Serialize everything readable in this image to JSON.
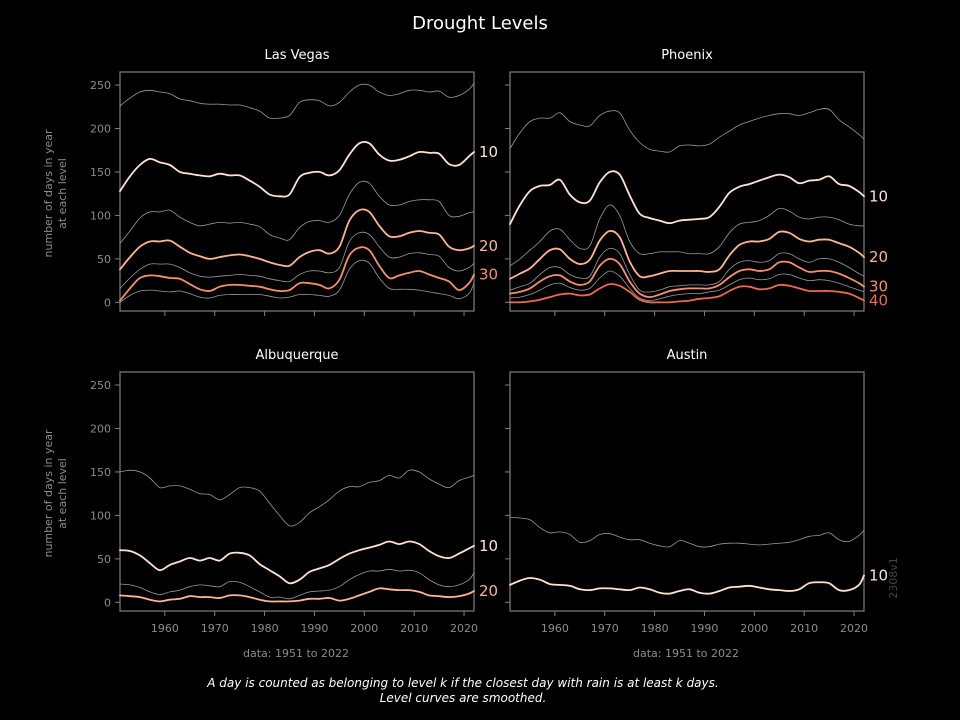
{
  "title": "Drought Levels",
  "caption_line1": "A day is counted as belonging to level k if the closest day with rain is at least k days.",
  "caption_line2": "Level curves are smoothed.",
  "version_tag": "2308v1",
  "ylabel_line1": "number of days in year",
  "ylabel_line2": "at each level",
  "xlabel": "data: 1951 to 2022",
  "colors": {
    "background": "#000000",
    "frame": "#808080",
    "grey_curve": "#9a9a9a",
    "level10": "#ffe3cf",
    "level20": "#ffb591",
    "level30": "#f88f6d",
    "level40": "#ee6a4c"
  },
  "chart_data": [
    {
      "type": "line",
      "title": "Las Vegas",
      "xlim": [
        1951,
        2022
      ],
      "ylim": [
        -10,
        265
      ],
      "xticks": [
        1960,
        1970,
        1980,
        1990,
        2000,
        2010,
        2020
      ],
      "yticks": [
        0,
        50,
        100,
        150,
        200,
        250
      ],
      "x": [
        1951,
        1953,
        1955,
        1957,
        1959,
        1961,
        1963,
        1965,
        1967,
        1969,
        1971,
        1973,
        1975,
        1977,
        1979,
        1981,
        1983,
        1985,
        1987,
        1989,
        1991,
        1993,
        1995,
        1997,
        1999,
        2001,
        2003,
        2005,
        2007,
        2009,
        2011,
        2013,
        2015,
        2017,
        2019,
        2021,
        2022
      ],
      "series": [
        {
          "level": 5,
          "end_label": "",
          "values": [
            226,
            235,
            242,
            244,
            242,
            240,
            234,
            232,
            229,
            228,
            228,
            227,
            227,
            224,
            220,
            212,
            212,
            215,
            230,
            233,
            232,
            226,
            230,
            242,
            250,
            250,
            242,
            238,
            240,
            244,
            244,
            242,
            243,
            236,
            238,
            245,
            252
          ]
        },
        {
          "level": 10,
          "end_label": "10",
          "values": [
            128,
            145,
            158,
            165,
            161,
            158,
            150,
            148,
            146,
            145,
            148,
            146,
            146,
            140,
            133,
            124,
            122,
            124,
            144,
            149,
            150,
            146,
            152,
            170,
            183,
            183,
            170,
            163,
            164,
            168,
            173,
            172,
            171,
            159,
            158,
            168,
            173
          ]
        },
        {
          "level": 15,
          "end_label": "",
          "values": [
            68,
            82,
            97,
            104,
            104,
            106,
            98,
            92,
            88,
            90,
            92,
            91,
            92,
            90,
            87,
            78,
            74,
            72,
            86,
            93,
            94,
            92,
            100,
            124,
            138,
            137,
            122,
            112,
            112,
            116,
            118,
            118,
            116,
            100,
            99,
            103,
            104
          ]
        },
        {
          "level": 20,
          "end_label": "20",
          "values": [
            38,
            52,
            64,
            70,
            70,
            71,
            64,
            57,
            53,
            50,
            52,
            54,
            55,
            53,
            50,
            46,
            43,
            42,
            52,
            58,
            60,
            56,
            64,
            94,
            106,
            104,
            88,
            76,
            76,
            80,
            82,
            80,
            78,
            64,
            60,
            62,
            65
          ]
        },
        {
          "level": 25,
          "end_label": "",
          "values": [
            16,
            28,
            38,
            44,
            44,
            44,
            40,
            34,
            30,
            29,
            30,
            31,
            32,
            31,
            30,
            27,
            25,
            24,
            32,
            36,
            36,
            34,
            40,
            70,
            80,
            78,
            64,
            52,
            52,
            56,
            57,
            55,
            53,
            40,
            36,
            40,
            45
          ]
        },
        {
          "level": 30,
          "end_label": "30",
          "values": [
            2,
            16,
            28,
            31,
            30,
            28,
            27,
            21,
            15,
            13,
            18,
            20,
            20,
            19,
            18,
            15,
            13,
            14,
            22,
            22,
            20,
            16,
            26,
            54,
            63,
            60,
            42,
            28,
            31,
            34,
            36,
            32,
            28,
            24,
            14,
            22,
            32
          ]
        },
        {
          "level": 35,
          "end_label": "",
          "values": [
            0,
            8,
            13,
            14,
            13,
            12,
            13,
            10,
            6,
            5,
            8,
            9,
            9,
            9,
            9,
            7,
            5,
            6,
            9,
            9,
            8,
            7,
            14,
            38,
            48,
            45,
            28,
            16,
            15,
            15,
            14,
            12,
            10,
            8,
            4,
            10,
            22
          ]
        }
      ]
    },
    {
      "type": "line",
      "title": "Phoenix",
      "xlim": [
        1951,
        2022
      ],
      "ylim": [
        -10,
        265
      ],
      "xticks": [
        1960,
        1970,
        1980,
        1990,
        2000,
        2010,
        2020
      ],
      "yticks": [
        0,
        50,
        100,
        150,
        200,
        250
      ],
      "x": [
        1951,
        1953,
        1955,
        1957,
        1959,
        1961,
        1963,
        1965,
        1967,
        1969,
        1971,
        1973,
        1975,
        1977,
        1979,
        1981,
        1983,
        1985,
        1987,
        1989,
        1991,
        1993,
        1995,
        1997,
        1999,
        2001,
        2003,
        2005,
        2007,
        2009,
        2011,
        2013,
        2015,
        2017,
        2019,
        2021,
        2022
      ],
      "series": [
        {
          "level": 5,
          "end_label": "",
          "values": [
            177,
            195,
            208,
            212,
            212,
            218,
            208,
            204,
            203,
            215,
            220,
            218,
            198,
            184,
            176,
            174,
            173,
            180,
            181,
            180,
            182,
            190,
            197,
            204,
            208,
            212,
            215,
            217,
            217,
            215,
            218,
            222,
            222,
            210,
            202,
            193,
            188
          ]
        },
        {
          "level": 10,
          "end_label": "10",
          "values": [
            90,
            112,
            128,
            134,
            135,
            141,
            124,
            115,
            117,
            138,
            150,
            147,
            123,
            102,
            97,
            94,
            91,
            94,
            95,
            96,
            98,
            110,
            126,
            133,
            136,
            140,
            144,
            147,
            144,
            137,
            140,
            141,
            145,
            136,
            134,
            127,
            122
          ]
        },
        {
          "level": 15,
          "end_label": "",
          "values": [
            42,
            50,
            60,
            70,
            82,
            84,
            72,
            62,
            65,
            96,
            112,
            100,
            70,
            56,
            56,
            58,
            58,
            58,
            56,
            56,
            56,
            64,
            80,
            90,
            92,
            94,
            100,
            108,
            105,
            98,
            96,
            98,
            98,
            95,
            90,
            88,
            88
          ]
        },
        {
          "level": 20,
          "end_label": "20",
          "values": [
            27,
            33,
            39,
            50,
            60,
            61,
            50,
            44,
            49,
            71,
            82,
            75,
            47,
            30,
            30,
            33,
            36,
            36,
            36,
            36,
            35,
            38,
            54,
            66,
            70,
            70,
            73,
            81,
            80,
            73,
            70,
            72,
            72,
            68,
            64,
            57,
            52
          ]
        },
        {
          "level": 25,
          "end_label": "",
          "values": [
            14,
            18,
            22,
            32,
            40,
            40,
            32,
            28,
            30,
            52,
            62,
            56,
            32,
            14,
            12,
            14,
            18,
            19,
            20,
            20,
            20,
            24,
            38,
            46,
            48,
            46,
            48,
            56,
            56,
            50,
            46,
            50,
            50,
            46,
            40,
            33,
            30
          ]
        },
        {
          "level": 30,
          "end_label": "30",
          "values": [
            10,
            12,
            16,
            24,
            30,
            31,
            24,
            20,
            24,
            42,
            50,
            44,
            24,
            10,
            6,
            9,
            13,
            15,
            16,
            16,
            16,
            20,
            29,
            36,
            38,
            36,
            38,
            46,
            46,
            40,
            35,
            36,
            36,
            33,
            28,
            22,
            18
          ]
        },
        {
          "level": 35,
          "end_label": "",
          "values": [
            5,
            6,
            9,
            14,
            20,
            22,
            17,
            14,
            16,
            28,
            36,
            30,
            16,
            5,
            2,
            4,
            7,
            9,
            10,
            10,
            12,
            14,
            20,
            26,
            28,
            26,
            27,
            32,
            32,
            28,
            25,
            26,
            25,
            22,
            18,
            14,
            12
          ]
        },
        {
          "level": 40,
          "end_label": "40",
          "values": [
            0,
            0,
            1,
            3,
            6,
            9,
            10,
            8,
            9,
            16,
            21,
            19,
            12,
            3,
            0,
            0,
            0,
            1,
            2,
            4,
            5,
            7,
            13,
            18,
            18,
            15,
            16,
            20,
            19,
            16,
            13,
            13,
            13,
            12,
            10,
            5,
            2
          ]
        }
      ]
    },
    {
      "type": "line",
      "title": "Albuquerque",
      "xlim": [
        1951,
        2022
      ],
      "ylim": [
        -10,
        265
      ],
      "xticks": [
        1960,
        1970,
        1980,
        1990,
        2000,
        2010,
        2020
      ],
      "yticks": [
        0,
        50,
        100,
        150,
        200,
        250
      ],
      "x": [
        1951,
        1953,
        1955,
        1957,
        1959,
        1961,
        1963,
        1965,
        1967,
        1969,
        1971,
        1973,
        1975,
        1977,
        1979,
        1981,
        1983,
        1985,
        1987,
        1989,
        1991,
        1993,
        1995,
        1997,
        1999,
        2001,
        2003,
        2005,
        2007,
        2009,
        2011,
        2013,
        2015,
        2017,
        2019,
        2021,
        2022
      ],
      "series": [
        {
          "level": 5,
          "end_label": "",
          "values": [
            150,
            152,
            150,
            143,
            132,
            134,
            134,
            130,
            125,
            124,
            118,
            124,
            132,
            132,
            128,
            114,
            100,
            88,
            92,
            103,
            110,
            118,
            128,
            133,
            133,
            138,
            140,
            146,
            143,
            152,
            150,
            142,
            136,
            132,
            140,
            144,
            146
          ]
        },
        {
          "level": 10,
          "end_label": "10",
          "values": [
            60,
            59,
            54,
            45,
            37,
            43,
            47,
            51,
            48,
            51,
            48,
            56,
            57,
            54,
            44,
            37,
            30,
            22,
            26,
            35,
            39,
            43,
            50,
            56,
            60,
            63,
            66,
            70,
            67,
            70,
            67,
            59,
            53,
            51,
            56,
            62,
            65
          ]
        },
        {
          "level": 15,
          "end_label": "",
          "values": [
            21,
            20,
            17,
            12,
            9,
            12,
            14,
            18,
            20,
            19,
            18,
            24,
            23,
            18,
            12,
            6,
            6,
            4,
            8,
            12,
            13,
            14,
            18,
            26,
            32,
            36,
            36,
            38,
            36,
            37,
            34,
            26,
            20,
            18,
            20,
            26,
            34
          ]
        },
        {
          "level": 20,
          "end_label": "20",
          "values": [
            8,
            7,
            6,
            3,
            1,
            3,
            4,
            7,
            6,
            6,
            5,
            8,
            8,
            6,
            3,
            1,
            1,
            1,
            2,
            4,
            4,
            5,
            2,
            4,
            8,
            12,
            16,
            15,
            14,
            14,
            12,
            8,
            7,
            6,
            7,
            10,
            13
          ]
        }
      ]
    },
    {
      "type": "line",
      "title": "Austin",
      "xlim": [
        1951,
        2022
      ],
      "ylim": [
        -10,
        265
      ],
      "xticks": [
        1960,
        1970,
        1980,
        1990,
        2000,
        2010,
        2020
      ],
      "yticks": [
        0,
        50,
        100,
        150,
        200,
        250
      ],
      "x": [
        1951,
        1953,
        1955,
        1957,
        1959,
        1961,
        1963,
        1965,
        1967,
        1969,
        1971,
        1973,
        1975,
        1977,
        1979,
        1981,
        1983,
        1985,
        1987,
        1989,
        1991,
        1993,
        1995,
        1997,
        1999,
        2001,
        2003,
        2005,
        2007,
        2009,
        2011,
        2013,
        2015,
        2017,
        2019,
        2021,
        2022
      ],
      "series": [
        {
          "level": 5,
          "end_label": "",
          "values": [
            98,
            97,
            95,
            86,
            80,
            81,
            78,
            69,
            71,
            78,
            79,
            75,
            72,
            72,
            68,
            65,
            64,
            71,
            68,
            64,
            64,
            67,
            68,
            68,
            67,
            66,
            67,
            68,
            69,
            72,
            76,
            77,
            80,
            72,
            70,
            77,
            83
          ]
        },
        {
          "level": 10,
          "end_label": "10",
          "values": [
            20,
            25,
            28,
            26,
            21,
            20,
            19,
            15,
            14,
            16,
            16,
            15,
            14,
            17,
            15,
            11,
            10,
            13,
            15,
            11,
            10,
            13,
            17,
            18,
            19,
            17,
            15,
            14,
            13,
            15,
            22,
            23,
            22,
            14,
            14,
            20,
            31
          ]
        }
      ]
    }
  ]
}
